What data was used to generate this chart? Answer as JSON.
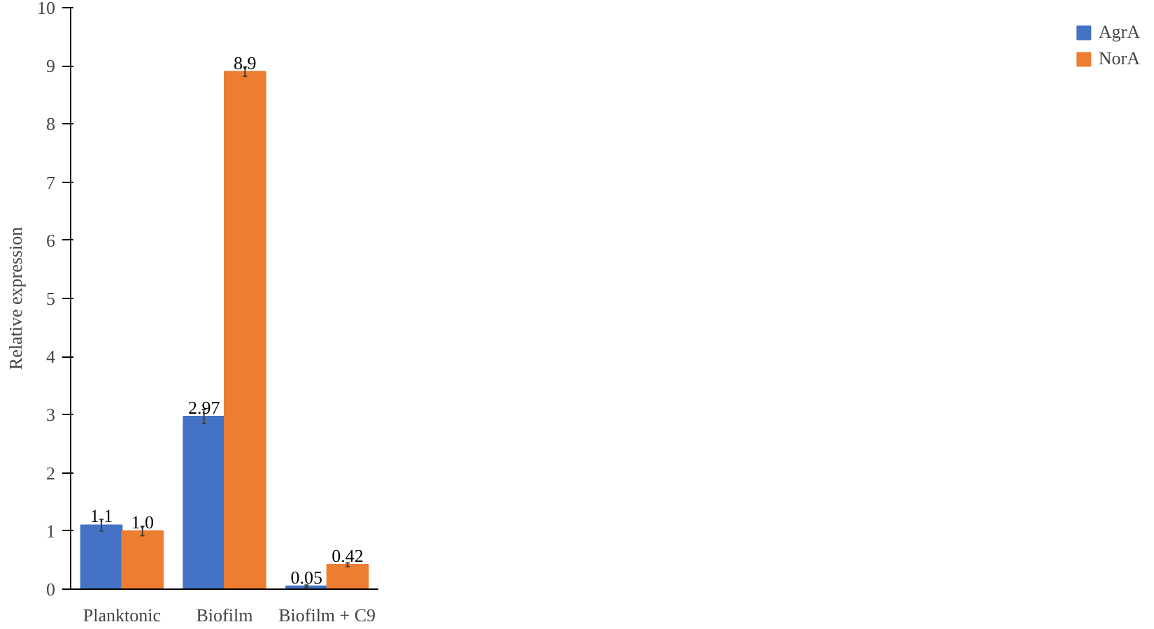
{
  "chart_data": {
    "type": "bar",
    "ylabel": "Relative expression",
    "categories": [
      "Planktonic",
      "Biofilm",
      "Biofilm + C9"
    ],
    "series": [
      {
        "name": "AgrA",
        "color": "#4472c4",
        "values": [
          1.1,
          2.97,
          0.05
        ],
        "errors": [
          0.1,
          0.12,
          0.02
        ],
        "value_labels": [
          "1.1",
          "2.97",
          "0.05"
        ]
      },
      {
        "name": "NorA",
        "color": "#ed7d31",
        "values": [
          1.0,
          8.9,
          0.42
        ],
        "errors": [
          0.08,
          0.08,
          0.03
        ],
        "value_labels": [
          "1.0",
          "8.9",
          "0.42"
        ]
      }
    ],
    "ylim": [
      0,
      10
    ],
    "yticks": [
      0,
      1,
      2,
      3,
      4,
      5,
      6,
      7,
      8,
      9,
      10
    ],
    "grid": false,
    "legend": "right"
  }
}
